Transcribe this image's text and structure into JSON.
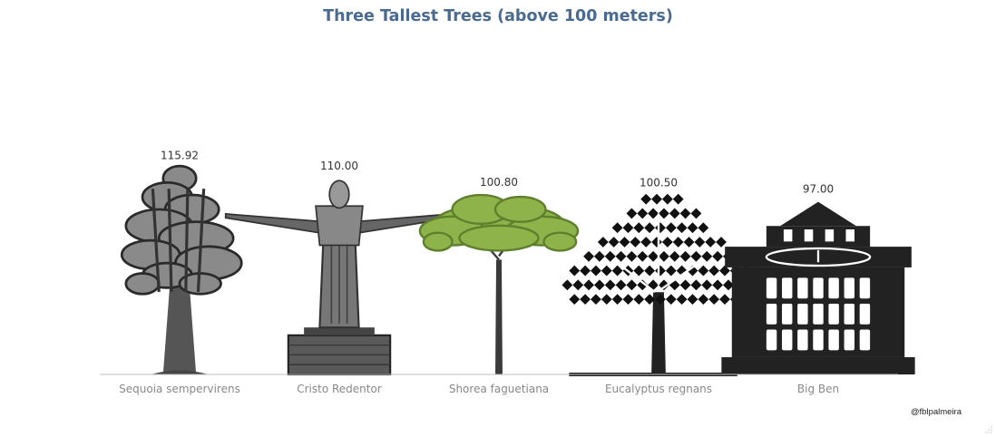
{
  "chart_data": {
    "type": "bar",
    "title": "Three Tallest Trees (above 100 meters)",
    "categories": [
      "Sequoia sempervirens",
      "Cristo Redentor",
      "Shorea faguetiana",
      "Eucalyptus regnans",
      "Big Ben"
    ],
    "values": [
      115.92,
      110.0,
      100.8,
      100.5,
      97.0
    ],
    "value_labels": [
      "115.92",
      "110.00",
      "100.80",
      "100.50",
      "97.00"
    ],
    "icons": [
      "sequoia-tree-icon",
      "christ-statue-icon",
      "shorea-tree-icon",
      "eucalyptus-tree-icon",
      "big-ben-tower-icon"
    ],
    "ylim": [
      0,
      190
    ],
    "grid": false,
    "colors": {
      "title": "#4a6a8f",
      "axis": "#c0c0c0",
      "tick": "#888888",
      "ink": "#222222",
      "leaf": "#8db34a"
    }
  },
  "credit": "@fblpalmeira"
}
